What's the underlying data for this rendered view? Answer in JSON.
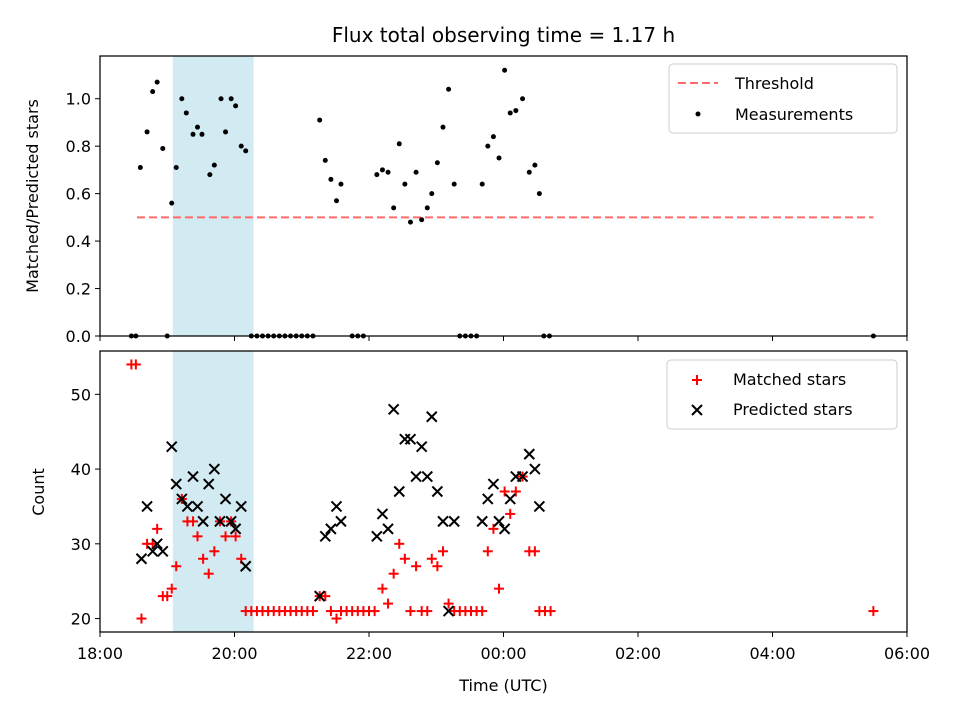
{
  "chart_data": [
    {
      "type": "scatter",
      "title": "Flux total observing time = 1.17 h",
      "xlabel": "",
      "ylabel": "Matched/Predicted stars",
      "xlim": [
        "18:00",
        "06:00"
      ],
      "ylim": [
        0,
        1.18
      ],
      "yticks": [
        0.0,
        0.2,
        0.4,
        0.6,
        0.8,
        1.0
      ],
      "ytick_labels": [
        "0.0",
        "0.2",
        "0.4",
        "0.6",
        "0.8",
        "1.0"
      ],
      "shaded_interval": {
        "x": [
          "19:05",
          "20:17"
        ],
        "color": "#add8e6"
      },
      "legend_position": "top-right",
      "threshold": {
        "name": "Threshold",
        "value": 0.5,
        "x_range": [
          "18:33",
          "05:30"
        ],
        "color": "#ff6b6b"
      },
      "series": [
        {
          "name": "Measurements",
          "color": "#000000",
          "marker": "dot",
          "points": [
            {
              "x": "18:28",
              "y": 0
            },
            {
              "x": "18:32",
              "y": 0
            },
            {
              "x": "18:36",
              "y": 0.71
            },
            {
              "x": "18:42",
              "y": 0.86
            },
            {
              "x": "18:47",
              "y": 1.03
            },
            {
              "x": "18:51",
              "y": 1.07
            },
            {
              "x": "18:56",
              "y": 0.79
            },
            {
              "x": "19:00",
              "y": 0
            },
            {
              "x": "19:04",
              "y": 0.56
            },
            {
              "x": "19:08",
              "y": 0.71
            },
            {
              "x": "19:13",
              "y": 1.0
            },
            {
              "x": "19:17",
              "y": 0.94
            },
            {
              "x": "19:23",
              "y": 0.85
            },
            {
              "x": "19:27",
              "y": 0.88
            },
            {
              "x": "19:31",
              "y": 0.85
            },
            {
              "x": "19:38",
              "y": 0.68
            },
            {
              "x": "19:42",
              "y": 0.72
            },
            {
              "x": "19:48",
              "y": 1.0
            },
            {
              "x": "19:52",
              "y": 0.86
            },
            {
              "x": "19:57",
              "y": 1.0
            },
            {
              "x": "20:01",
              "y": 0.97
            },
            {
              "x": "20:06",
              "y": 0.8
            },
            {
              "x": "20:10",
              "y": 0.78
            },
            {
              "x": "20:15",
              "y": 0
            },
            {
              "x": "20:20",
              "y": 0
            },
            {
              "x": "20:25",
              "y": 0
            },
            {
              "x": "20:30",
              "y": 0
            },
            {
              "x": "20:35",
              "y": 0
            },
            {
              "x": "20:40",
              "y": 0
            },
            {
              "x": "20:45",
              "y": 0
            },
            {
              "x": "20:50",
              "y": 0
            },
            {
              "x": "20:55",
              "y": 0
            },
            {
              "x": "21:00",
              "y": 0
            },
            {
              "x": "21:05",
              "y": 0
            },
            {
              "x": "21:10",
              "y": 0
            },
            {
              "x": "21:16",
              "y": 0.91
            },
            {
              "x": "21:21",
              "y": 0.74
            },
            {
              "x": "21:26",
              "y": 0.66
            },
            {
              "x": "21:31",
              "y": 0.57
            },
            {
              "x": "21:35",
              "y": 0.64
            },
            {
              "x": "21:45",
              "y": 0
            },
            {
              "x": "21:50",
              "y": 0
            },
            {
              "x": "21:55",
              "y": 0
            },
            {
              "x": "22:07",
              "y": 0.68
            },
            {
              "x": "22:12",
              "y": 0.7
            },
            {
              "x": "22:17",
              "y": 0.69
            },
            {
              "x": "22:22",
              "y": 0.54
            },
            {
              "x": "22:27",
              "y": 0.81
            },
            {
              "x": "22:32",
              "y": 0.64
            },
            {
              "x": "22:37",
              "y": 0.48
            },
            {
              "x": "22:42",
              "y": 0.69
            },
            {
              "x": "22:47",
              "y": 0.49
            },
            {
              "x": "22:52",
              "y": 0.54
            },
            {
              "x": "22:56",
              "y": 0.6
            },
            {
              "x": "23:01",
              "y": 0.73
            },
            {
              "x": "23:06",
              "y": 0.88
            },
            {
              "x": "23:11",
              "y": 1.04
            },
            {
              "x": "23:16",
              "y": 0.64
            },
            {
              "x": "23:21",
              "y": 0
            },
            {
              "x": "23:26",
              "y": 0
            },
            {
              "x": "23:31",
              "y": 0
            },
            {
              "x": "23:36",
              "y": 0
            },
            {
              "x": "23:41",
              "y": 0.64
            },
            {
              "x": "23:46",
              "y": 0.8
            },
            {
              "x": "23:51",
              "y": 0.84
            },
            {
              "x": "23:56",
              "y": 0.75
            },
            {
              "x": "00:01",
              "y": 1.12
            },
            {
              "x": "00:06",
              "y": 0.94
            },
            {
              "x": "00:11",
              "y": 0.95
            },
            {
              "x": "00:17",
              "y": 1.0
            },
            {
              "x": "00:23",
              "y": 0.69
            },
            {
              "x": "00:28",
              "y": 0.72
            },
            {
              "x": "00:32",
              "y": 0.6
            },
            {
              "x": "00:36",
              "y": 0
            },
            {
              "x": "00:41",
              "y": 0
            },
            {
              "x": "05:30",
              "y": 0
            }
          ]
        }
      ]
    },
    {
      "type": "scatter",
      "title": "",
      "xlabel": "Time (UTC)",
      "ylabel": "Count",
      "xlim": [
        "18:00",
        "06:00"
      ],
      "ylim": [
        18.2,
        55.8
      ],
      "xticks": [
        "18:00",
        "20:00",
        "22:00",
        "00:00",
        "02:00",
        "04:00",
        "06:00"
      ],
      "yticks": [
        20,
        30,
        40,
        50
      ],
      "ytick_labels": [
        "20",
        "30",
        "40",
        "50"
      ],
      "shaded_interval": {
        "x": [
          "19:05",
          "20:17"
        ],
        "color": "#add8e6"
      },
      "legend_position": "top-right",
      "series": [
        {
          "name": "Matched stars",
          "color": "#ff0000",
          "marker": "plus",
          "points": [
            {
              "x": "18:28",
              "y": 54
            },
            {
              "x": "18:32",
              "y": 54
            },
            {
              "x": "18:37",
              "y": 20
            },
            {
              "x": "18:42",
              "y": 30
            },
            {
              "x": "18:47",
              "y": 30
            },
            {
              "x": "18:51",
              "y": 32
            },
            {
              "x": "18:56",
              "y": 23
            },
            {
              "x": "19:00",
              "y": 23
            },
            {
              "x": "19:04",
              "y": 24
            },
            {
              "x": "19:08",
              "y": 27
            },
            {
              "x": "19:13",
              "y": 36
            },
            {
              "x": "19:18",
              "y": 33
            },
            {
              "x": "19:23",
              "y": 33
            },
            {
              "x": "19:27",
              "y": 31
            },
            {
              "x": "19:32",
              "y": 28
            },
            {
              "x": "19:37",
              "y": 26
            },
            {
              "x": "19:42",
              "y": 29
            },
            {
              "x": "19:47",
              "y": 33
            },
            {
              "x": "19:52",
              "y": 31
            },
            {
              "x": "19:57",
              "y": 33
            },
            {
              "x": "20:01",
              "y": 31
            },
            {
              "x": "20:06",
              "y": 28
            },
            {
              "x": "20:10",
              "y": 21
            },
            {
              "x": "20:15",
              "y": 21
            },
            {
              "x": "20:20",
              "y": 21
            },
            {
              "x": "20:25",
              "y": 21
            },
            {
              "x": "20:30",
              "y": 21
            },
            {
              "x": "20:35",
              "y": 21
            },
            {
              "x": "20:40",
              "y": 21
            },
            {
              "x": "20:45",
              "y": 21
            },
            {
              "x": "20:50",
              "y": 21
            },
            {
              "x": "20:55",
              "y": 21
            },
            {
              "x": "21:00",
              "y": 21
            },
            {
              "x": "21:05",
              "y": 21
            },
            {
              "x": "21:10",
              "y": 21
            },
            {
              "x": "21:16",
              "y": 23
            },
            {
              "x": "21:21",
              "y": 23
            },
            {
              "x": "21:26",
              "y": 21
            },
            {
              "x": "21:31",
              "y": 20
            },
            {
              "x": "21:35",
              "y": 21
            },
            {
              "x": "21:40",
              "y": 21
            },
            {
              "x": "21:45",
              "y": 21
            },
            {
              "x": "21:50",
              "y": 21
            },
            {
              "x": "21:55",
              "y": 21
            },
            {
              "x": "22:00",
              "y": 21
            },
            {
              "x": "22:05",
              "y": 21
            },
            {
              "x": "22:12",
              "y": 24
            },
            {
              "x": "22:17",
              "y": 22
            },
            {
              "x": "22:22",
              "y": 26
            },
            {
              "x": "22:27",
              "y": 30
            },
            {
              "x": "22:32",
              "y": 28
            },
            {
              "x": "22:37",
              "y": 21
            },
            {
              "x": "22:42",
              "y": 27
            },
            {
              "x": "22:47",
              "y": 21
            },
            {
              "x": "22:52",
              "y": 21
            },
            {
              "x": "22:56",
              "y": 28
            },
            {
              "x": "23:01",
              "y": 27
            },
            {
              "x": "23:06",
              "y": 29
            },
            {
              "x": "23:11",
              "y": 22
            },
            {
              "x": "23:16",
              "y": 21
            },
            {
              "x": "23:21",
              "y": 21
            },
            {
              "x": "23:26",
              "y": 21
            },
            {
              "x": "23:31",
              "y": 21
            },
            {
              "x": "23:36",
              "y": 21
            },
            {
              "x": "23:41",
              "y": 21
            },
            {
              "x": "23:46",
              "y": 29
            },
            {
              "x": "23:51",
              "y": 32
            },
            {
              "x": "23:56",
              "y": 24
            },
            {
              "x": "00:01",
              "y": 37
            },
            {
              "x": "00:06",
              "y": 34
            },
            {
              "x": "00:11",
              "y": 37
            },
            {
              "x": "00:17",
              "y": 39
            },
            {
              "x": "00:23",
              "y": 29
            },
            {
              "x": "00:28",
              "y": 29
            },
            {
              "x": "00:32",
              "y": 21
            },
            {
              "x": "00:37",
              "y": 21
            },
            {
              "x": "00:42",
              "y": 21
            },
            {
              "x": "05:30",
              "y": 21
            }
          ]
        },
        {
          "name": "Predicted stars",
          "color": "#000000",
          "marker": "x",
          "points": [
            {
              "x": "18:37",
              "y": 28
            },
            {
              "x": "18:42",
              "y": 35
            },
            {
              "x": "18:47",
              "y": 29
            },
            {
              "x": "18:51",
              "y": 30
            },
            {
              "x": "18:56",
              "y": 29
            },
            {
              "x": "19:04",
              "y": 43
            },
            {
              "x": "19:08",
              "y": 38
            },
            {
              "x": "19:13",
              "y": 36
            },
            {
              "x": "19:18",
              "y": 35
            },
            {
              "x": "19:23",
              "y": 39
            },
            {
              "x": "19:27",
              "y": 35
            },
            {
              "x": "19:32",
              "y": 33
            },
            {
              "x": "19:37",
              "y": 38
            },
            {
              "x": "19:42",
              "y": 40
            },
            {
              "x": "19:47",
              "y": 33
            },
            {
              "x": "19:52",
              "y": 36
            },
            {
              "x": "19:57",
              "y": 33
            },
            {
              "x": "20:01",
              "y": 32
            },
            {
              "x": "20:06",
              "y": 35
            },
            {
              "x": "20:10",
              "y": 27
            },
            {
              "x": "21:16",
              "y": 23
            },
            {
              "x": "21:21",
              "y": 31
            },
            {
              "x": "21:26",
              "y": 32
            },
            {
              "x": "21:31",
              "y": 35
            },
            {
              "x": "21:35",
              "y": 33
            },
            {
              "x": "22:07",
              "y": 31
            },
            {
              "x": "22:12",
              "y": 34
            },
            {
              "x": "22:17",
              "y": 32
            },
            {
              "x": "22:22",
              "y": 48
            },
            {
              "x": "22:27",
              "y": 37
            },
            {
              "x": "22:32",
              "y": 44
            },
            {
              "x": "22:37",
              "y": 44
            },
            {
              "x": "22:42",
              "y": 39
            },
            {
              "x": "22:47",
              "y": 43
            },
            {
              "x": "22:52",
              "y": 39
            },
            {
              "x": "22:56",
              "y": 47
            },
            {
              "x": "23:01",
              "y": 37
            },
            {
              "x": "23:06",
              "y": 33
            },
            {
              "x": "23:11",
              "y": 21
            },
            {
              "x": "23:16",
              "y": 33
            },
            {
              "x": "23:41",
              "y": 33
            },
            {
              "x": "23:46",
              "y": 36
            },
            {
              "x": "23:51",
              "y": 38
            },
            {
              "x": "23:56",
              "y": 33
            },
            {
              "x": "00:01",
              "y": 32
            },
            {
              "x": "00:06",
              "y": 36
            },
            {
              "x": "00:11",
              "y": 39
            },
            {
              "x": "00:17",
              "y": 39
            },
            {
              "x": "00:23",
              "y": 42
            },
            {
              "x": "00:28",
              "y": 40
            },
            {
              "x": "00:32",
              "y": 35
            }
          ]
        }
      ]
    }
  ]
}
